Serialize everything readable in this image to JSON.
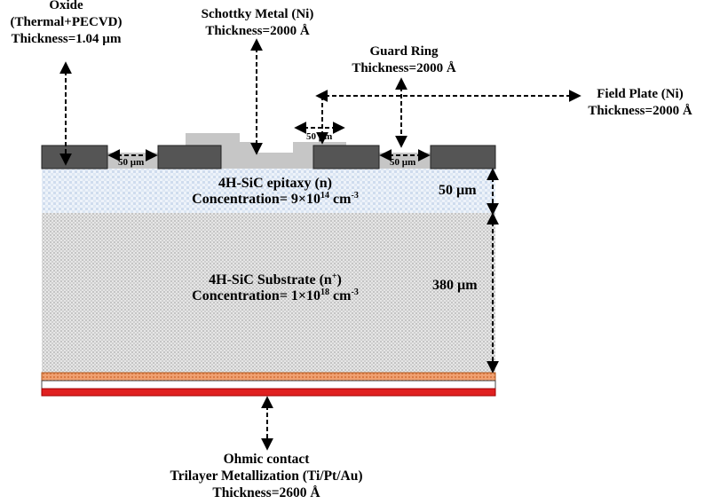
{
  "oxide": {
    "line1": "Oxide",
    "line2": "(Thermal+PECVD)",
    "line3": "Thickness=1.04 µm"
  },
  "schottky": {
    "line1": "Schottky Metal (Ni)",
    "line2": "Thickness=2000 Å"
  },
  "guard_ring": {
    "line1": "Guard Ring",
    "line2": "Thickness=2000 Å"
  },
  "field_plate": {
    "line1": "Field Plate (Ni)",
    "line2": "Thickness=2000 Å"
  },
  "dims": {
    "gap_left": "50 µm",
    "gap_right": "50 µm",
    "overlap": "50 µm"
  },
  "epitaxy": {
    "name": "4H-SiC epitaxy (n)",
    "conc_prefix": "Concentration= 9×10",
    "conc_exp": "14",
    "conc_unit": " cm",
    "conc_unit_exp": "-3",
    "thickness": "50 µm"
  },
  "substrate": {
    "name_prefix": "4H-SiC Substrate (n",
    "name_sup": "+",
    "name_suffix": ")",
    "conc_prefix": "Concentration= 1×10",
    "conc_exp": "18",
    "conc_unit": " cm",
    "conc_unit_exp": "-3",
    "thickness": "380 µm"
  },
  "ohmic": {
    "line1": "Ohmic contact",
    "line2": "Trilayer Metallization (Ti/Pt/Au)",
    "line3": "Thickness=2600 Å"
  },
  "colors": {
    "oxide": "#555555",
    "metal": "#c8c8c8",
    "epi": "#dfe8f4",
    "substrate": "#d8d8d8",
    "ohmic_top": "#e8935a",
    "ohmic_bottom": "#e02020"
  }
}
